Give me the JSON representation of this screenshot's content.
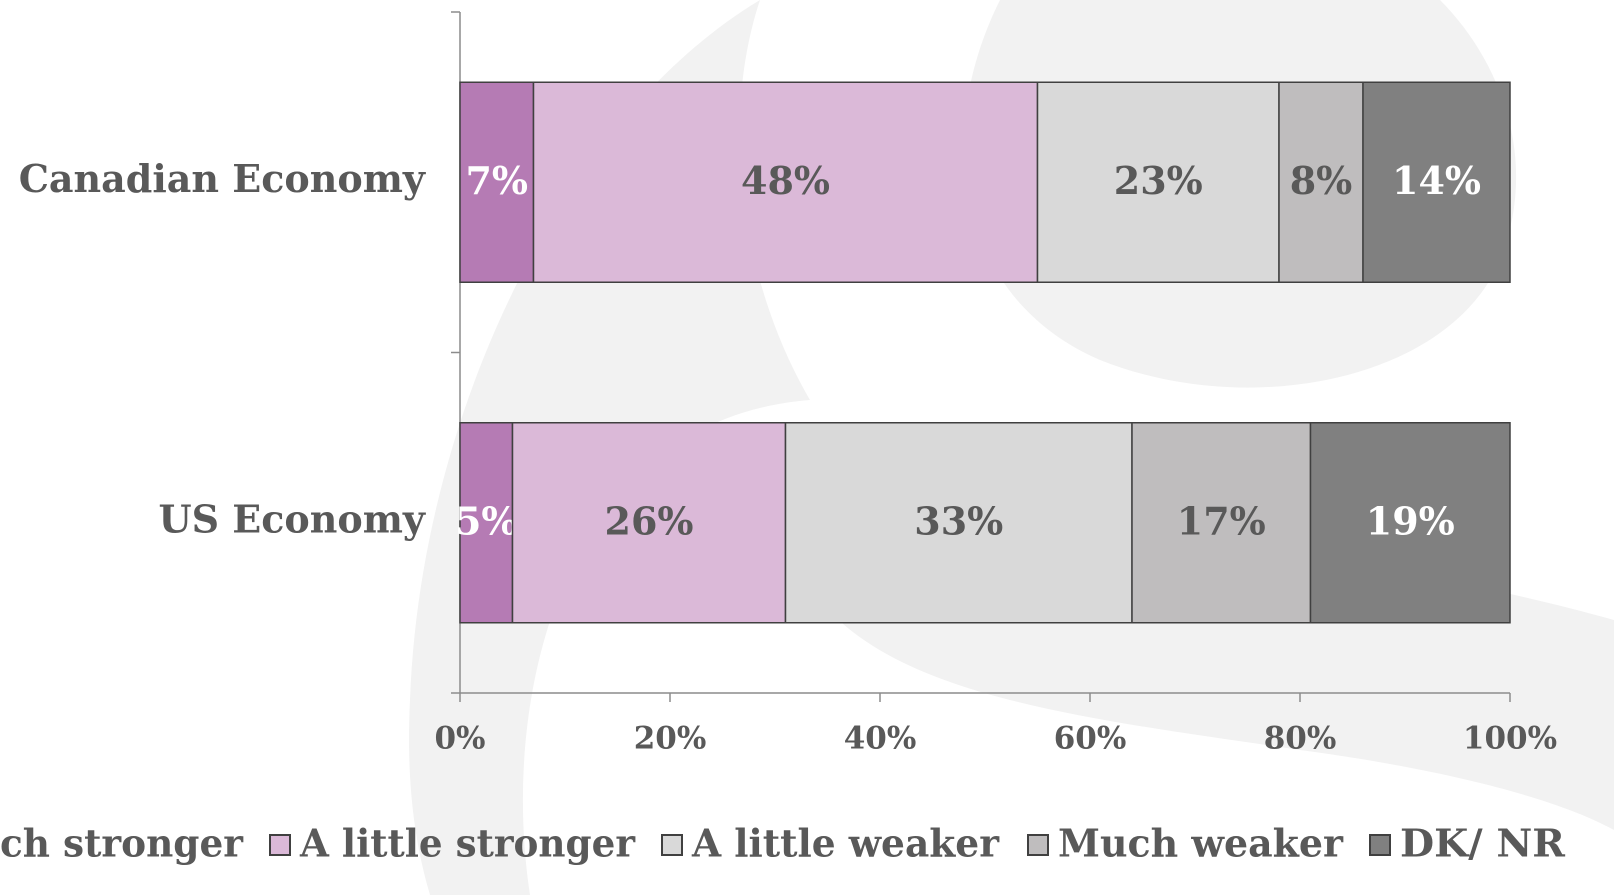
{
  "chart_data": {
    "type": "stacked_bar_horizontal",
    "categories": [
      "Canadian Economy",
      "US Economy"
    ],
    "series": [
      {
        "name": "ch stronger",
        "color": "#b57bb4",
        "values": [
          7,
          5
        ],
        "value_labels": [
          "7%",
          "5%"
        ]
      },
      {
        "name": "A little stronger",
        "color": "#dbb9d8",
        "values": [
          48,
          26
        ],
        "value_labels": [
          "48%",
          "26%"
        ]
      },
      {
        "name": "A little weaker",
        "color": "#d9d9d9",
        "values": [
          23,
          33
        ],
        "value_labels": [
          "23%",
          "33%"
        ]
      },
      {
        "name": "Much weaker",
        "color": "#bfbdbe",
        "values": [
          8,
          17
        ],
        "value_labels": [
          "8%",
          "17%"
        ]
      },
      {
        "name": "DK/ NR",
        "color": "#808080",
        "values": [
          14,
          19
        ],
        "value_labels": [
          "14%",
          "19%"
        ]
      }
    ],
    "xlim": [
      0,
      100
    ],
    "xticks": [
      {
        "value": 0,
        "label": "0%"
      },
      {
        "value": 20,
        "label": "20%"
      },
      {
        "value": 40,
        "label": "40%"
      },
      {
        "value": 60,
        "label": "60%"
      },
      {
        "value": 80,
        "label": "80%"
      },
      {
        "value": 100,
        "label": "100%"
      }
    ],
    "legend": "bottom"
  }
}
